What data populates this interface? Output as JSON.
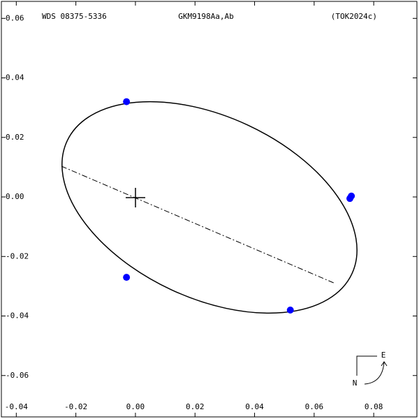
{
  "chart_data": {
    "type": "scatter",
    "title_left": "WDS 08375-5336",
    "title": "GKM9198Aa,Ab",
    "title_right": "(TOK2024c)",
    "compass": {
      "east": "E",
      "north": "N"
    },
    "x": [
      -0.003,
      0.0725,
      0.072,
      -0.003,
      0.052
    ],
    "values": [
      0.032,
      0.0003,
      -0.0005,
      -0.027,
      -0.038
    ],
    "color": "#0000ff",
    "xlim": [
      -0.045,
      0.0945
    ],
    "ylim": [
      -0.0739,
      0.0657
    ],
    "xticks": [
      {
        "value": -0.04,
        "label": "-0.04"
      },
      {
        "value": -0.02,
        "label": "-0.02"
      },
      {
        "value": 0,
        "label": "0.00"
      },
      {
        "value": 0.02,
        "label": "0.02"
      },
      {
        "value": 0.04,
        "label": "0.04"
      },
      {
        "value": 0.06,
        "label": "0.06"
      },
      {
        "value": 0.08,
        "label": "0.08"
      }
    ],
    "yticks": [
      {
        "value": 0.06,
        "label": "0.06"
      },
      {
        "value": 0.04,
        "label": "0.04"
      },
      {
        "value": 0.02,
        "label": "0.02"
      },
      {
        "value": 0,
        "label": "0.00"
      },
      {
        "value": -0.02,
        "label": "-0.02"
      },
      {
        "value": -0.04,
        "label": "-0.04"
      },
      {
        "value": -0.06,
        "label": "-0.06"
      }
    ]
  }
}
